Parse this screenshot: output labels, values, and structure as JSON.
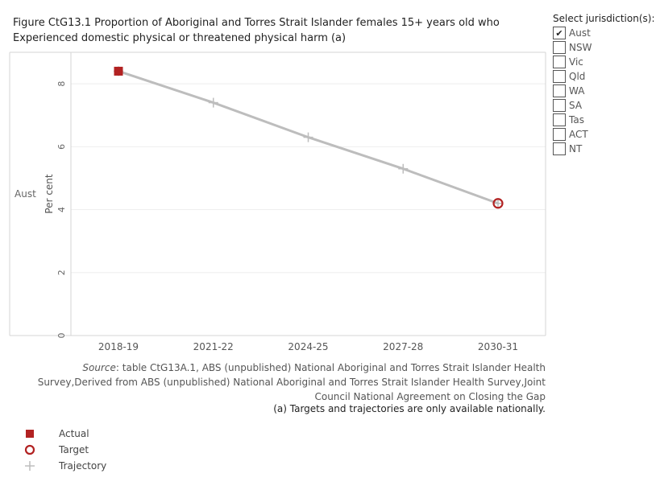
{
  "title": "Figure CtG13.1 Proportion of Aboriginal and Torres Strait Islander females 15+ years old who Experienced domestic physical or threatened physical harm (a)",
  "jurisdiction_filter": {
    "heading": "Select jurisdiction(s):",
    "options": [
      {
        "label": "Aust",
        "checked": true
      },
      {
        "label": "NSW",
        "checked": false
      },
      {
        "label": "Vic",
        "checked": false
      },
      {
        "label": "Qld",
        "checked": false
      },
      {
        "label": "WA",
        "checked": false
      },
      {
        "label": "SA",
        "checked": false
      },
      {
        "label": "Tas",
        "checked": false
      },
      {
        "label": "ACT",
        "checked": false
      },
      {
        "label": "NT",
        "checked": false
      }
    ]
  },
  "chart_data": {
    "type": "line",
    "row_label": "Aust",
    "ylabel": "Per cent",
    "xlabel": "",
    "categories": [
      "2018-19",
      "2021-22",
      "2024-25",
      "2027-28",
      "2030-31"
    ],
    "ylim": [
      0,
      9
    ],
    "yticks": [
      0,
      2,
      4,
      6,
      8
    ],
    "grid": true,
    "series": [
      {
        "name": "Actual",
        "x": [
          "2018-19"
        ],
        "values": [
          8.4
        ],
        "marker": "square",
        "color": "#b22222"
      },
      {
        "name": "Target",
        "x": [
          "2030-31"
        ],
        "values": [
          4.2
        ],
        "marker": "circle",
        "color": "#b22222"
      },
      {
        "name": "Trajectory",
        "x": [
          "2018-19",
          "2021-22",
          "2024-25",
          "2027-28",
          "2030-31"
        ],
        "values": [
          8.4,
          7.4,
          6.3,
          5.3,
          4.2
        ],
        "marker": "plus",
        "color": "#bdbdbd"
      }
    ]
  },
  "source": {
    "prefix": "Source",
    "text": ": table CtG13A.1, ABS (unpublished) National Aboriginal and Torres Strait Islander Health Survey,Derived from ABS (unpublished) National Aboriginal and Torres Strait Islander Health Survey,Joint Council National Agreement on Closing the Gap"
  },
  "footnote": "(a) Targets and trajectories are only available nationally.",
  "legend": [
    {
      "label": "Actual",
      "icon": "square-icon",
      "color": "#b22222"
    },
    {
      "label": "Target",
      "icon": "circle-icon",
      "color": "#b22222"
    },
    {
      "label": "Trajectory",
      "icon": "plus-icon",
      "color": "#bdbdbd"
    }
  ]
}
